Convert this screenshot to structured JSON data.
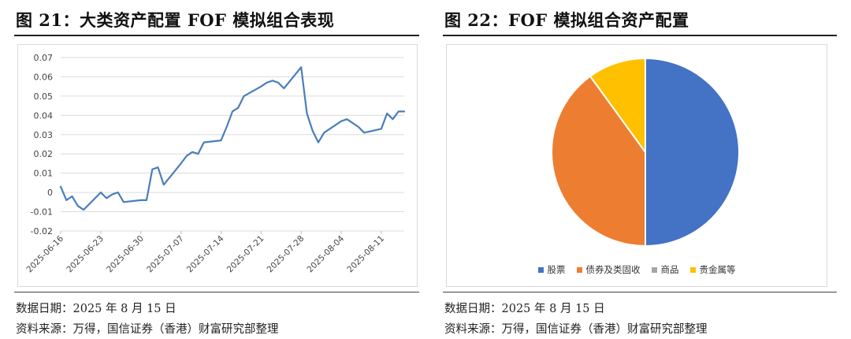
{
  "left_panel": {
    "title": "图 21：大类资产配置 FOF 模拟组合表现",
    "date_note": "数据日期：2025 年 8 月 15 日",
    "source_note": "资料来源：万得，国信证券（香港）财富研究部整理"
  },
  "right_panel": {
    "title": "图 22：FOF 模拟组合资产配置",
    "date_note": "数据日期：2025 年 8 月 15 日",
    "source_note": "资料来源：万得，国信证券（香港）财富研究部整理"
  },
  "chart_data": [
    {
      "type": "line",
      "title": "",
      "xlabel": "",
      "ylabel": "",
      "ylim": [
        -0.02,
        0.07
      ],
      "yticks": [
        "0.07",
        "0.06",
        "0.05",
        "0.04",
        "0.03",
        "0.02",
        "0.01",
        "0",
        "-0.01",
        "-0.02"
      ],
      "xticks": [
        "2025-06-16",
        "2025-06-23",
        "2025-06-30",
        "2025-07-07",
        "2025-07-14",
        "2025-07-21",
        "2025-07-28",
        "2025-08-04",
        "2025-08-11"
      ],
      "grid": true,
      "line_color": "#4a7eba",
      "series": [
        {
          "x": [
            "2025-06-16",
            "2025-06-17",
            "2025-06-18",
            "2025-06-19",
            "2025-06-20",
            "2025-06-23",
            "2025-06-24",
            "2025-06-25",
            "2025-06-26",
            "2025-06-27",
            "2025-06-30",
            "2025-07-01",
            "2025-07-02",
            "2025-07-03",
            "2025-07-04",
            "2025-07-07",
            "2025-07-08",
            "2025-07-09",
            "2025-07-10",
            "2025-07-11",
            "2025-07-14",
            "2025-07-15",
            "2025-07-16",
            "2025-07-17",
            "2025-07-18",
            "2025-07-21",
            "2025-07-22",
            "2025-07-23",
            "2025-07-24",
            "2025-07-25",
            "2025-07-28",
            "2025-07-29",
            "2025-07-30",
            "2025-07-31",
            "2025-08-01",
            "2025-08-04",
            "2025-08-05",
            "2025-08-06",
            "2025-08-07",
            "2025-08-08",
            "2025-08-11",
            "2025-08-12",
            "2025-08-13",
            "2025-08-14",
            "2025-08-15"
          ],
          "values": [
            0.003,
            -0.004,
            -0.002,
            -0.007,
            -0.009,
            0.0,
            -0.003,
            -0.001,
            0.0,
            -0.005,
            -0.004,
            -0.004,
            0.012,
            0.013,
            0.004,
            0.015,
            0.019,
            0.021,
            0.02,
            0.026,
            0.027,
            0.034,
            0.042,
            0.044,
            0.05,
            0.055,
            0.057,
            0.058,
            0.057,
            0.054,
            0.065,
            0.041,
            0.032,
            0.026,
            0.031,
            0.037,
            0.038,
            0.036,
            0.034,
            0.031,
            0.033,
            0.041,
            0.038,
            0.042,
            0.042
          ]
        }
      ]
    },
    {
      "type": "pie",
      "title": "",
      "categories": [
        "股票",
        "债券及类固收",
        "商品",
        "贵金属等"
      ],
      "values": [
        50,
        40,
        0,
        10
      ],
      "colors": [
        "#4472c4",
        "#ed7d31",
        "#a5a5a5",
        "#ffc000"
      ],
      "legend": "bottom"
    }
  ]
}
